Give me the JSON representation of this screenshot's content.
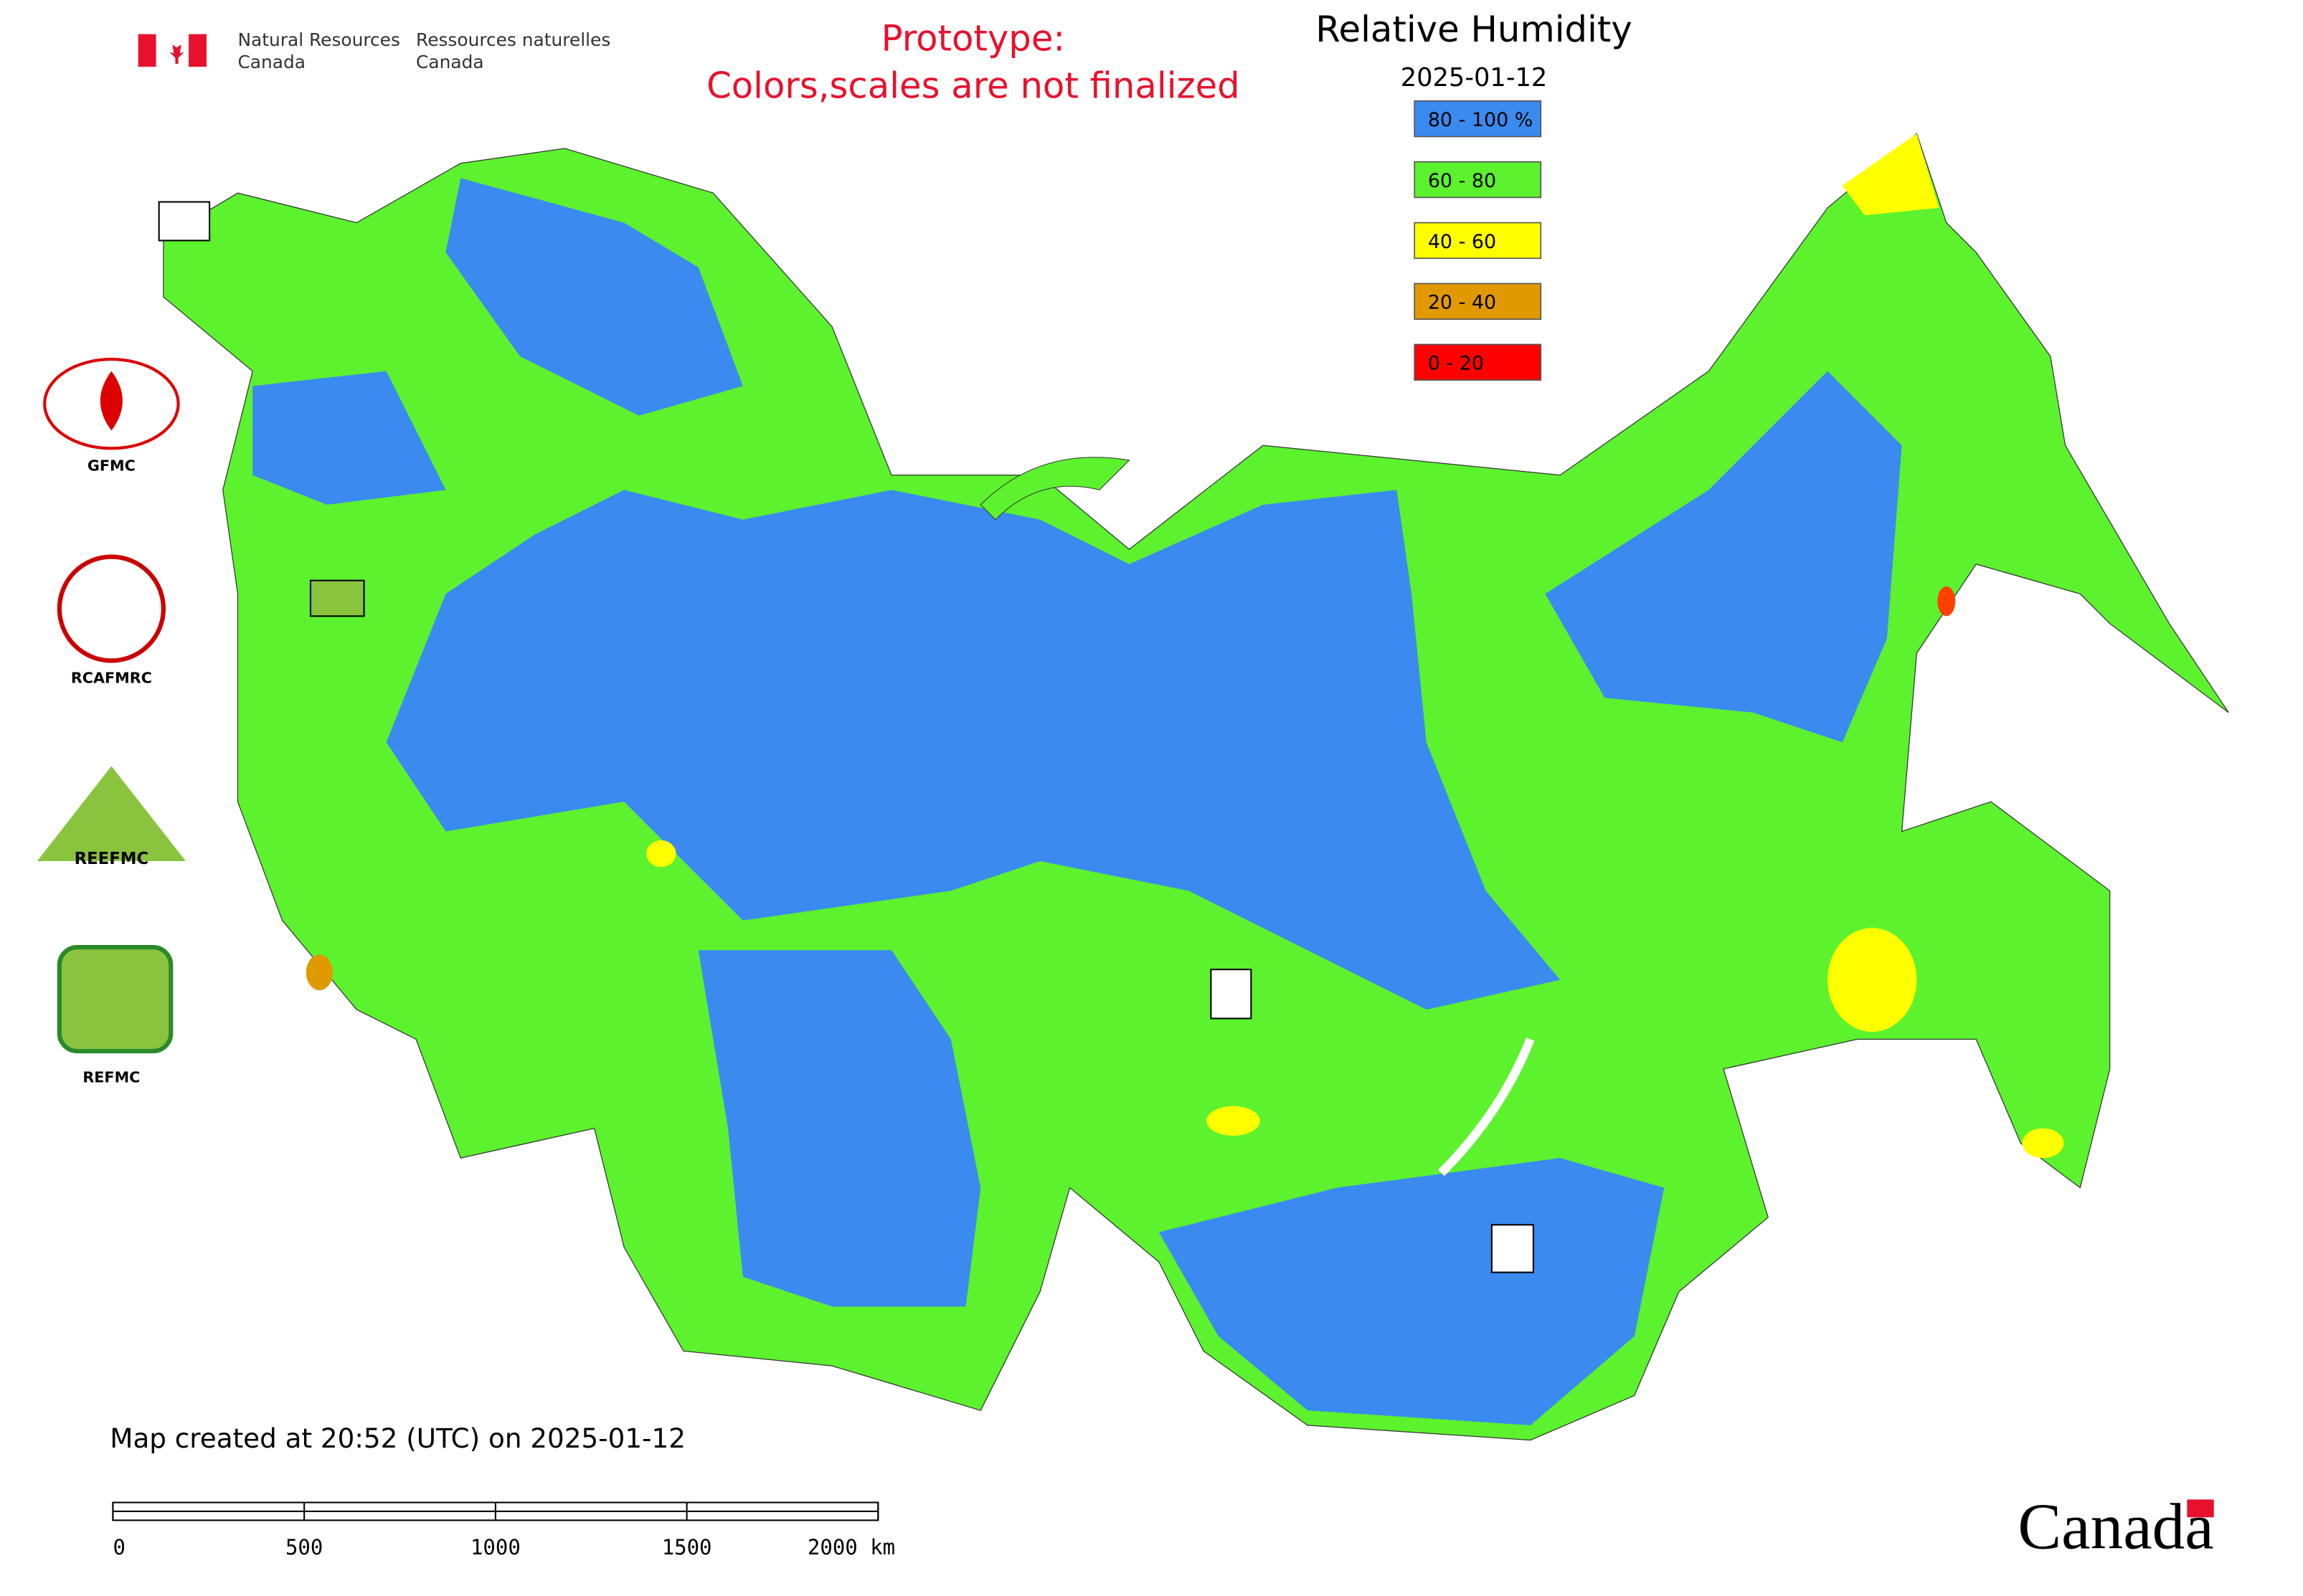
{
  "header": {
    "agency_en": [
      "Natural Resources",
      "Canada"
    ],
    "agency_fr": [
      "Ressources naturelles",
      "Canada"
    ],
    "notice": [
      "Prototype:",
      "Colors,scales are not finalized"
    ]
  },
  "map": {
    "title": "Relative Humidity",
    "date": "2025-01-12",
    "legend": [
      {
        "label": "80 - 100 %",
        "color": "#3a8af0"
      },
      {
        "label": "60 - 80",
        "color": "#5cf22e"
      },
      {
        "label": "40 - 60",
        "color": "#ffff00"
      },
      {
        "label": "20 - 40",
        "color": "#e09a00"
      },
      {
        "label": "0 - 20",
        "color": "#ff0000"
      }
    ],
    "centres": [
      "GFMC",
      "RCAFMRC",
      "REEFMC",
      "REFMC"
    ],
    "created": "Map created at 20:52 (UTC) on 2025-01-12",
    "scale_labels": [
      "0",
      "500",
      "1000",
      "1500",
      "2000 km"
    ]
  },
  "footer": {
    "wordmark": "Canada"
  }
}
